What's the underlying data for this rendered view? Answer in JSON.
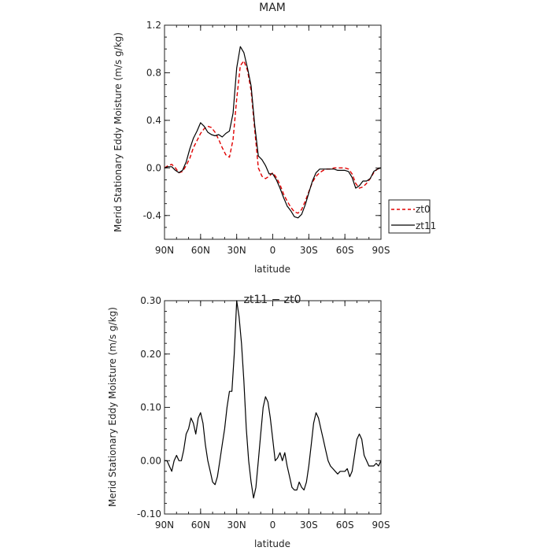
{
  "chart_data": [
    {
      "type": "line",
      "title": "MAM",
      "xlabel": "latitude",
      "ylabel": "Merid Stationary Eddy Moisture (m/s g/kg)",
      "xlim": [
        90,
        -90
      ],
      "ylim": [
        -0.6,
        1.2
      ],
      "x_ticks": [
        90,
        60,
        30,
        0,
        -30,
        -60,
        -90
      ],
      "x_tick_labels": [
        "90N",
        "60N",
        "30N",
        "0",
        "30S",
        "60S",
        "90S"
      ],
      "y_ticks": [
        -0.4,
        0.0,
        0.4,
        0.8,
        1.2
      ],
      "y_tick_labels": [
        "-0.4",
        "0.0",
        "0.4",
        "0.8",
        "1.2"
      ],
      "legend": {
        "placement": "right",
        "entries": [
          "zt0",
          "zt11"
        ]
      },
      "series": [
        {
          "name": "zt0",
          "color": "#e00000",
          "dash": "dashed",
          "x": [
            90,
            87,
            84,
            81,
            78,
            75,
            72,
            69,
            66,
            63,
            60,
            57,
            54,
            51,
            48,
            45,
            42,
            39,
            36,
            33,
            30,
            27,
            24,
            21,
            18,
            15,
            12,
            9,
            6,
            3,
            0,
            -3,
            -6,
            -9,
            -12,
            -15,
            -18,
            -21,
            -24,
            -27,
            -30,
            -33,
            -36,
            -39,
            -42,
            -45,
            -48,
            -51,
            -54,
            -57,
            -60,
            -63,
            -66,
            -69,
            -72,
            -75,
            -78,
            -81,
            -84,
            -87,
            -90
          ],
          "values": [
            0.0,
            0.02,
            0.03,
            0.0,
            -0.04,
            -0.03,
            0.02,
            0.08,
            0.17,
            0.23,
            0.29,
            0.33,
            0.35,
            0.34,
            0.3,
            0.24,
            0.17,
            0.11,
            0.09,
            0.24,
            0.58,
            0.86,
            0.9,
            0.82,
            0.65,
            0.32,
            0.0,
            -0.07,
            -0.09,
            -0.07,
            -0.04,
            -0.08,
            -0.14,
            -0.22,
            -0.28,
            -0.33,
            -0.37,
            -0.38,
            -0.35,
            -0.28,
            -0.2,
            -0.12,
            -0.07,
            -0.04,
            -0.02,
            -0.01,
            -0.01,
            0.0,
            0.0,
            0.0,
            0.0,
            -0.01,
            -0.05,
            -0.13,
            -0.17,
            -0.16,
            -0.13,
            -0.09,
            -0.04,
            -0.01,
            0.0
          ]
        },
        {
          "name": "zt11",
          "color": "#000000",
          "dash": "solid",
          "x": [
            90,
            87,
            84,
            81,
            78,
            75,
            72,
            69,
            66,
            63,
            60,
            57,
            54,
            51,
            48,
            45,
            42,
            39,
            36,
            33,
            30,
            27,
            24,
            21,
            18,
            15,
            12,
            9,
            6,
            3,
            0,
            -3,
            -6,
            -9,
            -12,
            -15,
            -18,
            -21,
            -24,
            -27,
            -30,
            -33,
            -36,
            -39,
            -42,
            -45,
            -48,
            -51,
            -54,
            -57,
            -60,
            -63,
            -66,
            -69,
            -72,
            -75,
            -78,
            -81,
            -84,
            -87,
            -90
          ],
          "values": [
            0.0,
            0.01,
            0.01,
            -0.02,
            -0.04,
            -0.02,
            0.05,
            0.16,
            0.25,
            0.31,
            0.38,
            0.35,
            0.3,
            0.28,
            0.27,
            0.28,
            0.26,
            0.29,
            0.31,
            0.46,
            0.84,
            1.02,
            0.97,
            0.84,
            0.69,
            0.36,
            0.1,
            0.07,
            0.02,
            -0.05,
            -0.05,
            -0.1,
            -0.17,
            -0.25,
            -0.32,
            -0.36,
            -0.41,
            -0.42,
            -0.39,
            -0.31,
            -0.21,
            -0.11,
            -0.04,
            -0.01,
            -0.01,
            -0.01,
            -0.01,
            -0.01,
            -0.02,
            -0.02,
            -0.02,
            -0.03,
            -0.08,
            -0.17,
            -0.15,
            -0.11,
            -0.11,
            -0.09,
            -0.03,
            -0.01,
            0.0
          ]
        }
      ]
    },
    {
      "type": "line",
      "title": "zt11 − zt0",
      "xlabel": "latitude",
      "ylabel": "Merid Stationary Eddy Moisture (m/s g/kg)",
      "xlim": [
        90,
        -90
      ],
      "ylim": [
        -0.1,
        0.3
      ],
      "x_ticks": [
        90,
        60,
        30,
        0,
        -30,
        -60,
        -90
      ],
      "x_tick_labels": [
        "90N",
        "60N",
        "30N",
        "0",
        "30S",
        "60S",
        "90S"
      ],
      "y_ticks": [
        -0.1,
        0.0,
        0.1,
        0.2,
        0.3
      ],
      "y_tick_labels": [
        "-0.10",
        "0.00",
        "0.10",
        "0.20",
        "0.30"
      ],
      "series": [
        {
          "color": "#000000",
          "dash": "solid",
          "x": [
            90,
            88,
            86,
            84,
            82,
            80,
            78,
            76,
            74,
            72,
            70,
            68,
            66,
            64,
            62,
            60,
            58,
            56,
            54,
            52,
            50,
            48,
            46,
            44,
            42,
            40,
            38,
            36,
            34,
            32,
            30,
            28,
            26,
            24,
            22,
            20,
            18,
            16,
            14,
            12,
            10,
            8,
            6,
            4,
            2,
            0,
            -2,
            -4,
            -6,
            -8,
            -10,
            -12,
            -14,
            -16,
            -18,
            -20,
            -22,
            -24,
            -26,
            -28,
            -30,
            -32,
            -34,
            -36,
            -38,
            -40,
            -42,
            -44,
            -46,
            -48,
            -50,
            -52,
            -54,
            -56,
            -58,
            -60,
            -62,
            -64,
            -66,
            -68,
            -70,
            -72,
            -74,
            -76,
            -78,
            -80,
            -82,
            -84,
            -86,
            -88,
            -90
          ],
          "values": [
            0.0,
            0.0,
            -0.01,
            -0.02,
            0.0,
            0.01,
            0.0,
            0.0,
            0.02,
            0.05,
            0.06,
            0.08,
            0.07,
            0.05,
            0.08,
            0.09,
            0.07,
            0.03,
            0.0,
            -0.02,
            -0.04,
            -0.045,
            -0.03,
            0.0,
            0.03,
            0.06,
            0.1,
            0.13,
            0.13,
            0.2,
            0.3,
            0.27,
            0.22,
            0.15,
            0.06,
            0.0,
            -0.04,
            -0.07,
            -0.05,
            0.0,
            0.05,
            0.1,
            0.12,
            0.11,
            0.08,
            0.04,
            0.0,
            0.005,
            0.015,
            0.0,
            0.015,
            -0.01,
            -0.03,
            -0.05,
            -0.055,
            -0.055,
            -0.04,
            -0.05,
            -0.055,
            -0.04,
            -0.01,
            0.03,
            0.07,
            0.09,
            0.08,
            0.06,
            0.04,
            0.02,
            0.0,
            -0.01,
            -0.015,
            -0.02,
            -0.025,
            -0.02,
            -0.02,
            -0.02,
            -0.015,
            -0.03,
            -0.02,
            0.01,
            0.04,
            0.05,
            0.04,
            0.01,
            0.0,
            -0.01,
            -0.01,
            -0.01,
            -0.005,
            -0.01,
            0.0
          ]
        }
      ]
    }
  ]
}
